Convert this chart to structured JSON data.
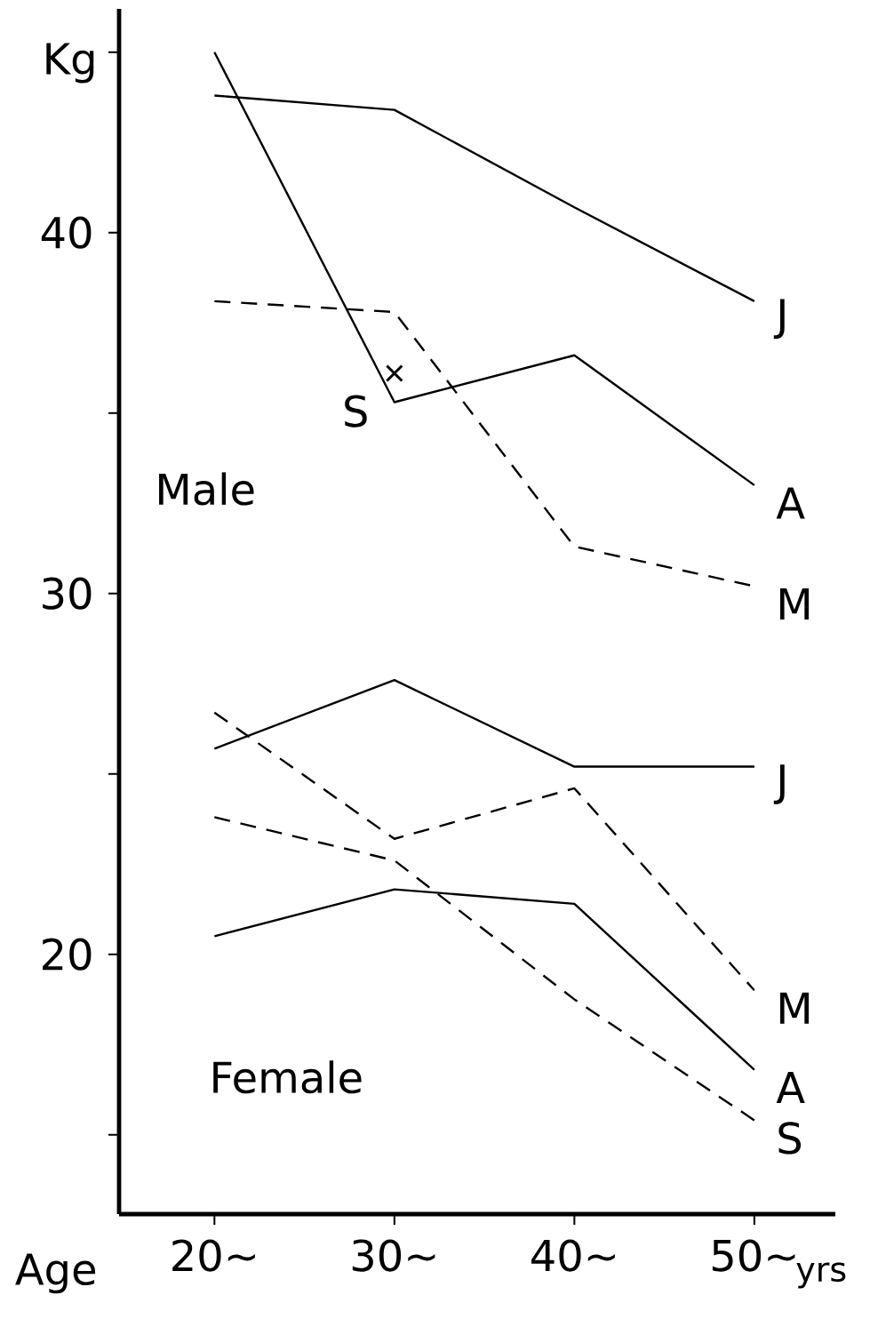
{
  "chart_data": {
    "type": "line",
    "ylabel": "Kg",
    "xlabel": "Age",
    "categories": [
      "20~",
      "30~",
      "40~",
      "50~"
    ],
    "ylim": [
      12.8,
      46.2
    ],
    "yticks": [
      {
        "value": 15,
        "label": null
      },
      20,
      {
        "value": 25,
        "label": null
      },
      30,
      {
        "value": 35,
        "label": null
      },
      40,
      {
        "value": 45,
        "label": null
      }
    ],
    "annotations": [
      "Male",
      "Female",
      "yrs"
    ],
    "series": [
      {
        "name": "J",
        "color": "#000000",
        "line_style": "solid",
        "values": [
          43.8,
          43.4,
          40.7,
          38.1
        ]
      },
      {
        "name": "A",
        "color": "#000000",
        "line_style": "solid",
        "values": [
          45.0,
          35.3,
          36.6,
          33.0
        ]
      },
      {
        "name": "M",
        "color": "#000000",
        "line_style": "dashed",
        "values": [
          38.1,
          37.8,
          31.3,
          30.2
        ]
      },
      {
        "name": "S",
        "type": "scatter",
        "marker": "cross",
        "color": "#000000",
        "values": [
          null,
          36.1,
          null,
          null
        ]
      },
      {
        "name": "J",
        "color": "#000000",
        "line_style": "solid",
        "values": [
          25.7,
          27.6,
          25.2,
          25.2
        ]
      },
      {
        "name": "M",
        "color": "#000000",
        "line_style": "dashed",
        "values": [
          26.7,
          23.2,
          24.6,
          19.0
        ]
      },
      {
        "name": "A",
        "color": "#000000",
        "line_style": "solid",
        "values": [
          20.5,
          21.8,
          21.4,
          16.8
        ]
      },
      {
        "name": "S",
        "color": "#000000",
        "line_style": "dashed",
        "values": [
          23.8,
          22.6,
          18.75,
          15.4
        ]
      }
    ]
  }
}
